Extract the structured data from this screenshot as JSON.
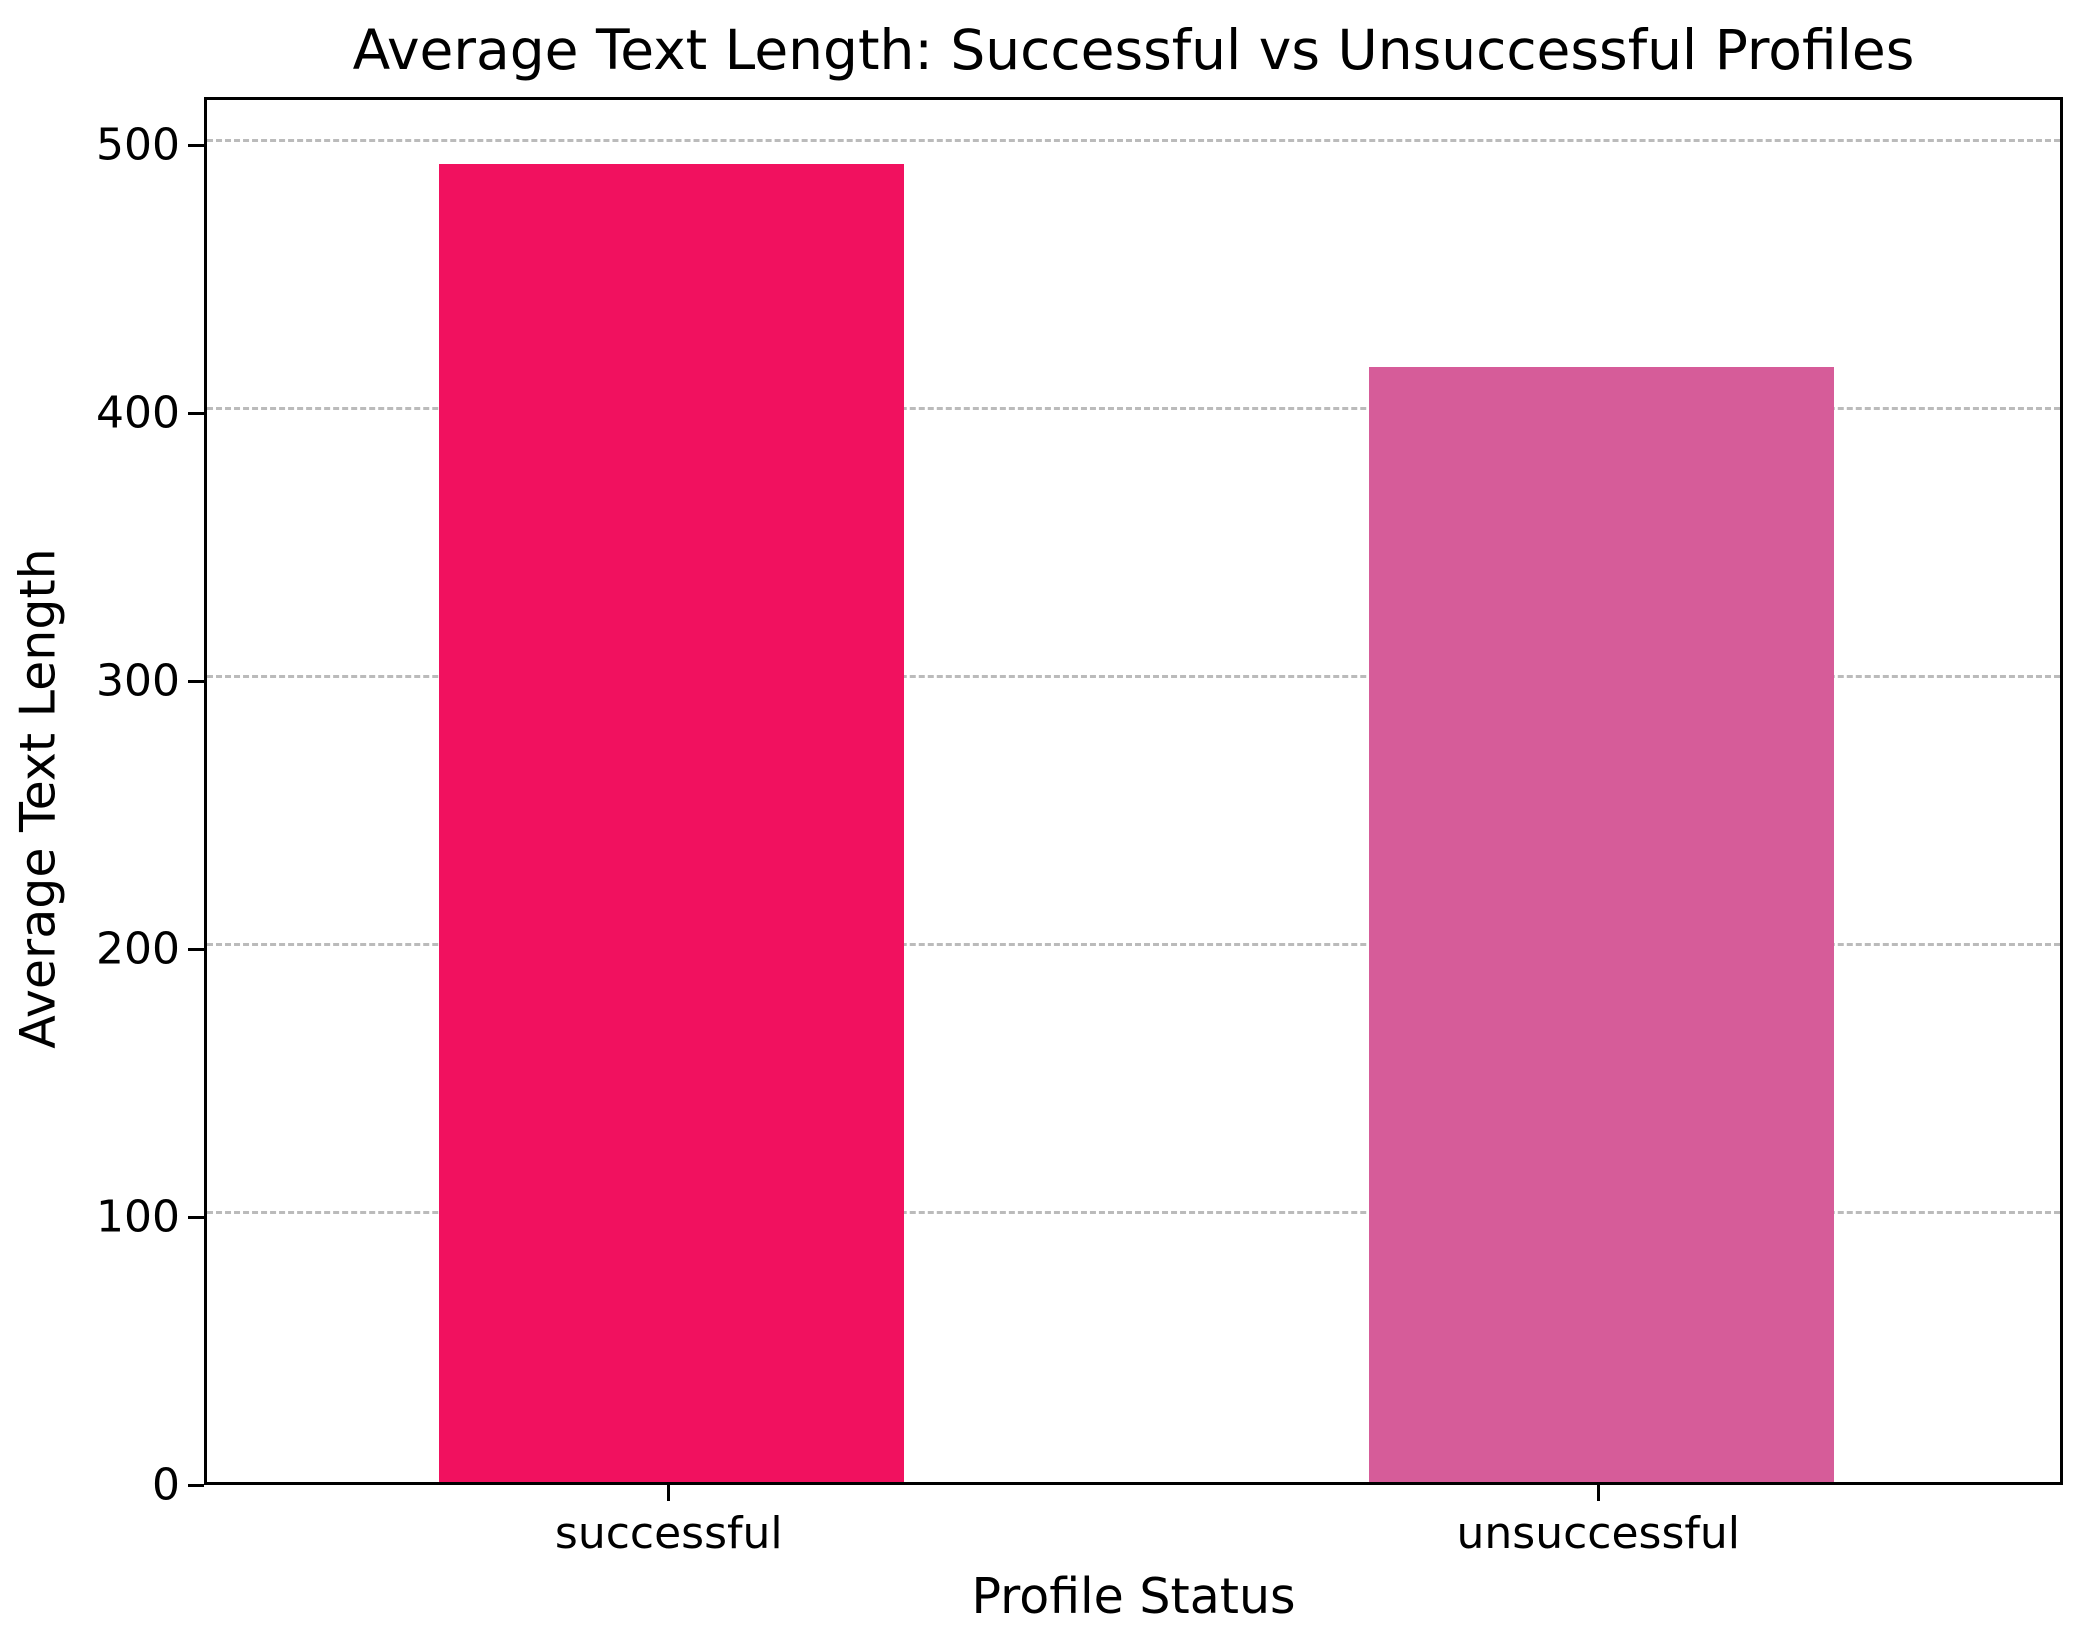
{
  "chart_data": {
    "type": "bar",
    "title": "Average Text Length: Successful vs Unsuccessful Profiles",
    "xlabel": "Profile Status",
    "ylabel": "Average Text Length",
    "categories": [
      "successful",
      "unsuccessful"
    ],
    "values": [
      492,
      416
    ],
    "bar_colors": [
      "#F1115F",
      "#D65C99"
    ],
    "ylim": [
      0,
      518
    ],
    "yticks": [
      0,
      100,
      200,
      300,
      400,
      500
    ],
    "bar_width_fraction": 0.25,
    "grid": "horizontal-dashed",
    "grid_color": "#BBBBBB",
    "axis_color": "#000000",
    "background_color": "#FFFFFF",
    "legend": "none"
  }
}
